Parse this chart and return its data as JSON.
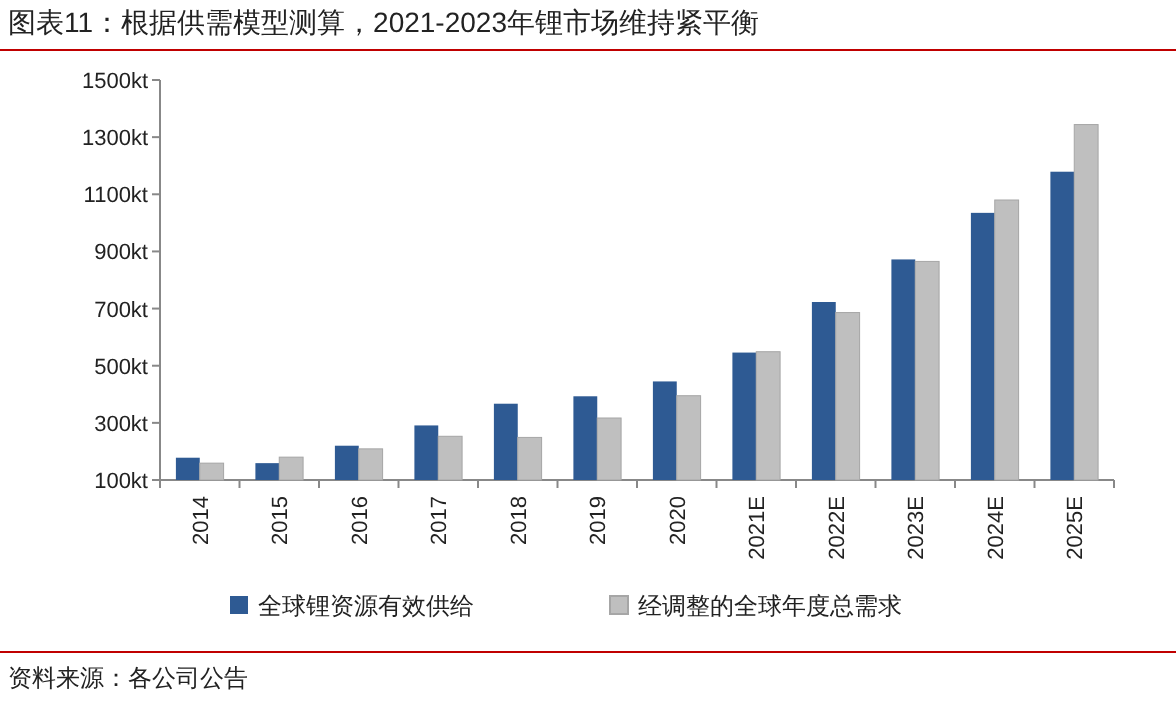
{
  "chart_data": {
    "type": "bar",
    "title": "图表11：根据供需模型测算，2021-2023年锂市场维持紧平衡",
    "categories": [
      "2014",
      "2015",
      "2016",
      "2017",
      "2018",
      "2019",
      "2020",
      "2021E",
      "2022E",
      "2023E",
      "2024E",
      "2025E"
    ],
    "series": [
      {
        "name": "全球锂资源有效供给",
        "color": "#2e5a93",
        "values": [
          178,
          159,
          220,
          291,
          367,
          393,
          445,
          546,
          723,
          872,
          1035,
          1179
        ]
      },
      {
        "name": "经调整的全球年度总需求",
        "color": "#bfbfbf",
        "values": [
          159,
          180,
          209,
          253,
          249,
          317,
          395,
          549,
          686,
          865,
          1080,
          1344
        ]
      }
    ],
    "ylim": [
      100,
      1500
    ],
    "yticks": [
      {
        "value": 100,
        "label": "100kt"
      },
      {
        "value": 300,
        "label": "300kt"
      },
      {
        "value": 500,
        "label": "500kt"
      },
      {
        "value": 700,
        "label": "700kt"
      },
      {
        "value": 900,
        "label": "900kt"
      },
      {
        "value": 1100,
        "label": "1100kt"
      },
      {
        "value": 1300,
        "label": "1300kt"
      },
      {
        "value": 1500,
        "label": "1500kt"
      }
    ],
    "legend": "bottom",
    "annotations": [
      "资料来源：各公司公告"
    ]
  }
}
